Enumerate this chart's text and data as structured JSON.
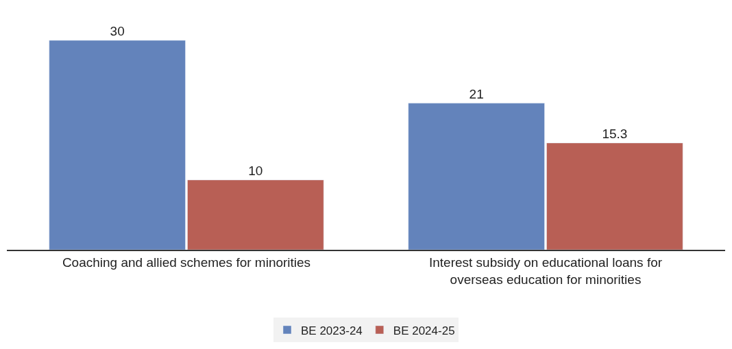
{
  "chart_data": {
    "type": "bar",
    "categories": [
      "Coaching and allied schemes for minorities",
      "Interest subsidy on educational loans for\noverseas education for minorities"
    ],
    "series": [
      {
        "name": "BE 2023-24",
        "color": "#6383bb",
        "values": [
          30,
          21
        ]
      },
      {
        "name": "BE 2024-25",
        "color": "#b85f55",
        "values": [
          10,
          15.3
        ]
      }
    ],
    "data_labels": true,
    "legend": "bottom",
    "tick_labels": "x"
  }
}
